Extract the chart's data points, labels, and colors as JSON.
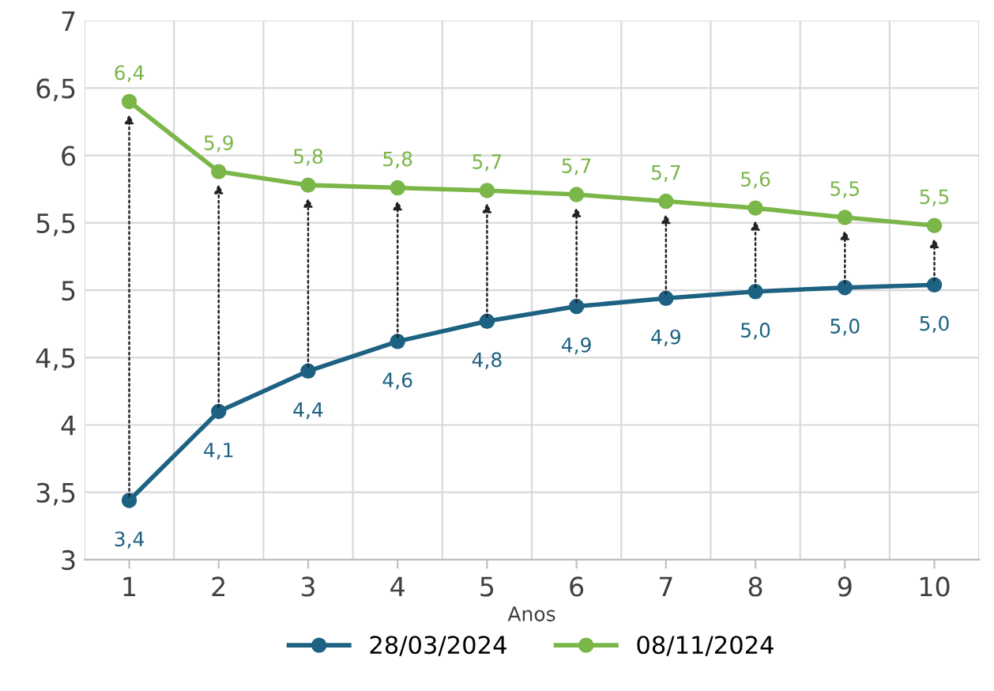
{
  "chart_data": {
    "type": "line",
    "xlabel": "Anos",
    "categories": [
      "1",
      "2",
      "3",
      "4",
      "5",
      "6",
      "7",
      "8",
      "9",
      "10"
    ],
    "series": [
      {
        "name": "28/03/2024",
        "color": "#1d6282",
        "values": [
          3.44,
          4.1,
          4.4,
          4.62,
          4.77,
          4.88,
          4.94,
          4.99,
          5.02,
          5.04
        ],
        "value_labels": [
          "3,4",
          "4,1",
          "4,4",
          "4,6",
          "4,8",
          "4,9",
          "4,9",
          "5,0",
          "5,0",
          "5,0"
        ]
      },
      {
        "name": "08/11/2024",
        "color": "#7ab648",
        "values": [
          6.4,
          5.88,
          5.78,
          5.76,
          5.74,
          5.71,
          5.66,
          5.61,
          5.54,
          5.48
        ],
        "value_labels": [
          "6,4",
          "5,9",
          "5,8",
          "5,8",
          "5,7",
          "5,7",
          "5,7",
          "5,6",
          "5,5",
          "5,5"
        ]
      }
    ],
    "ylim": [
      3,
      7
    ],
    "yticks": [
      3,
      {
        "value": 3.5,
        "label": "3,5"
      },
      4,
      {
        "value": 4.5,
        "label": "4,5"
      },
      5,
      {
        "value": 5.5,
        "label": "5,5"
      },
      6,
      {
        "value": 6.5,
        "label": "6,5"
      },
      7
    ],
    "grid": true,
    "legend": "bottom",
    "marker": "circle",
    "line_style": "solid"
  }
}
